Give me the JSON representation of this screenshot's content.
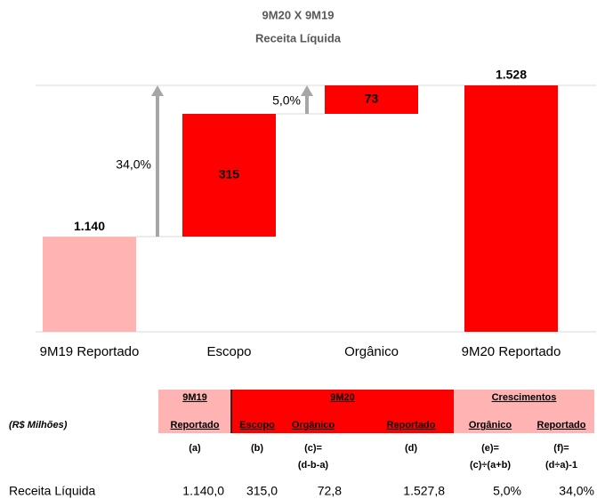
{
  "chart_data": {
    "type": "waterfall",
    "title": "9M20 X 9M19",
    "subtitle": "Receita Líquida",
    "categories": [
      "9M19 Reportado",
      "Escopo",
      "Orgânico",
      "9M20 Reportado"
    ],
    "values": [
      1140,
      315,
      73,
      1528
    ],
    "value_labels": [
      "1.140",
      "315",
      "73",
      "1.528"
    ],
    "colors": [
      "#ffb3b3",
      "#ff0000",
      "#ff0000",
      "#ff0000"
    ],
    "annotations": [
      "34,0%",
      "5,0%"
    ],
    "ylim": [
      896,
      1528
    ]
  },
  "table": {
    "groups": [
      "9M19",
      "9M20",
      "Crescimentos"
    ],
    "unit": "(R$ Milhões)",
    "columns": [
      "Reportado",
      "Escopo",
      "Orgânico",
      "Reportado",
      "Orgânico",
      "Reportado"
    ],
    "formulas": [
      "(a)",
      "(b)",
      "(c)=",
      "(d)",
      "(e)=",
      "(f)="
    ],
    "formulas2": [
      "(d-b-a)",
      "(c)÷(a+b)",
      "(d÷a)-1"
    ],
    "rows": [
      [
        "Receita Líquida",
        "1.140,0",
        "315,0",
        "72,8",
        "1.527,8",
        "5,0%",
        "34,0%"
      ]
    ]
  }
}
